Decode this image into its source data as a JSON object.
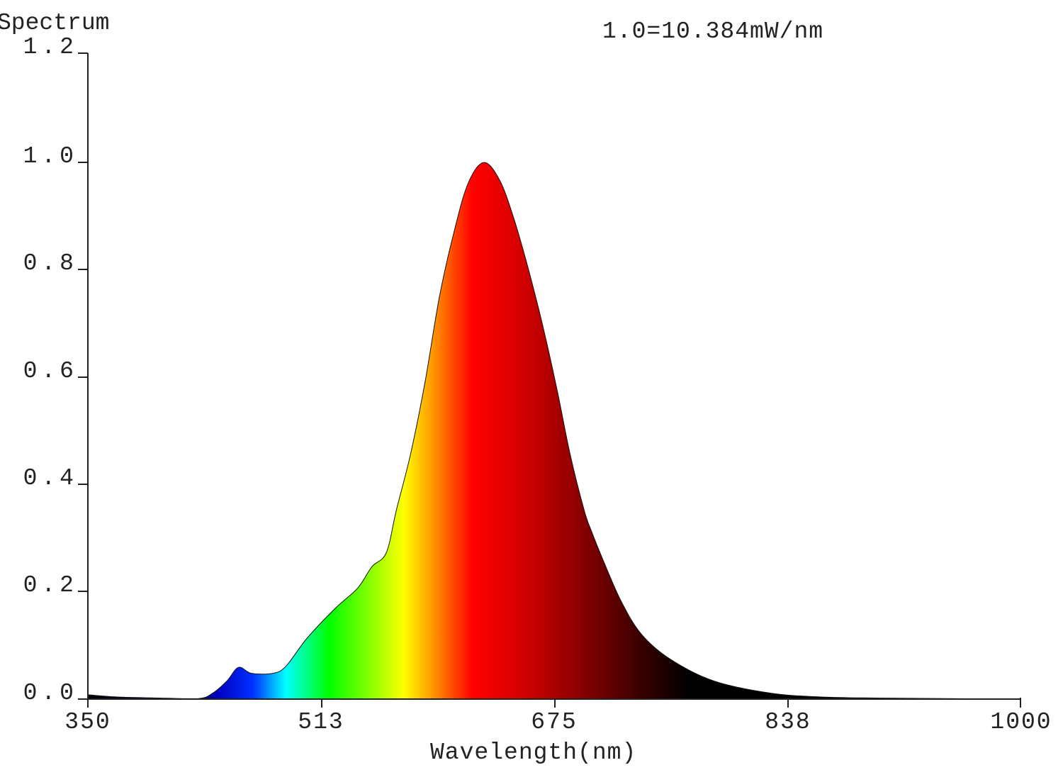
{
  "chart_data": {
    "type": "area",
    "title": "",
    "ylabel": "Spectrum",
    "xlabel": "Wavelength(nm)",
    "annotation": "1.0=10.384mW/nm",
    "xlim": [
      350,
      1000
    ],
    "ylim": [
      0,
      1.2
    ],
    "grid": false,
    "legend": null,
    "x_ticks": [
      "350",
      "513",
      "675",
      "838",
      "1000"
    ],
    "y_ticks": [
      "0.0",
      "0.2",
      "0.4",
      "0.6",
      "0.8",
      "1.0",
      "1.2"
    ],
    "fill": "visible-spectrum color gradient (blue to red, fading to black in IR)",
    "x": [
      350,
      370,
      400,
      427,
      437,
      447,
      455,
      464,
      479,
      488,
      503,
      523,
      538,
      548,
      558,
      565,
      575,
      585,
      595,
      605,
      615,
      626,
      637,
      647,
      657,
      667,
      677,
      686,
      696,
      701,
      709,
      722,
      736,
      756,
      786,
      826,
      861,
      900,
      1000
    ],
    "values": [
      0.008,
      0.004,
      0.002,
      0.001,
      0.011,
      0.034,
      0.059,
      0.048,
      0.048,
      0.061,
      0.114,
      0.17,
      0.206,
      0.246,
      0.272,
      0.351,
      0.456,
      0.589,
      0.747,
      0.866,
      0.958,
      0.997,
      0.964,
      0.892,
      0.799,
      0.694,
      0.575,
      0.456,
      0.35,
      0.312,
      0.259,
      0.18,
      0.12,
      0.074,
      0.034,
      0.011,
      0.004,
      0.002,
      0.0
    ],
    "peaks": [
      {
        "wavelength": 455,
        "value": 0.059
      },
      {
        "wavelength": 626,
        "value": 1.0
      }
    ]
  },
  "labels": {
    "ylabel": "Spectrum",
    "annotation": "1.0=10.384mW/nm",
    "xlabel": "Wavelength(nm)",
    "x_ticks": [
      "350",
      "513",
      "675",
      "838",
      "1000"
    ],
    "y_ticks": [
      "0.0",
      "0.2",
      "0.4",
      "0.6",
      "0.8",
      "1.0",
      "1.2"
    ]
  },
  "colors": {
    "axis": "#222222",
    "background": "#ffffff",
    "gradient_stops": [
      {
        "nm": 350,
        "color": "#000000"
      },
      {
        "nm": 420,
        "color": "#000050"
      },
      {
        "nm": 440,
        "color": "#0000c0"
      },
      {
        "nm": 465,
        "color": "#0030ff"
      },
      {
        "nm": 488,
        "color": "#00ffff"
      },
      {
        "nm": 518,
        "color": "#00ff00"
      },
      {
        "nm": 545,
        "color": "#80ff00"
      },
      {
        "nm": 570,
        "color": "#ffff00"
      },
      {
        "nm": 590,
        "color": "#ff9900"
      },
      {
        "nm": 618,
        "color": "#ff0000"
      },
      {
        "nm": 650,
        "color": "#d80000"
      },
      {
        "nm": 690,
        "color": "#900000"
      },
      {
        "nm": 740,
        "color": "#300000"
      },
      {
        "nm": 770,
        "color": "#000000"
      },
      {
        "nm": 1000,
        "color": "#000000"
      }
    ]
  }
}
